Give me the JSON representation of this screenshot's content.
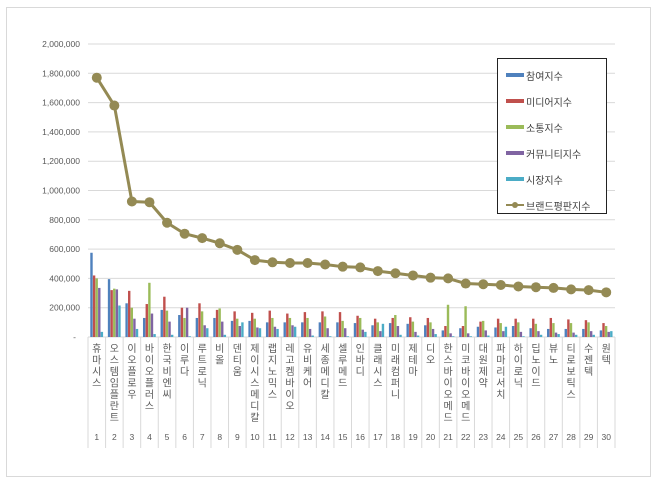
{
  "chart_data": {
    "type": "bar+line",
    "title": "",
    "xlabel": "",
    "ylabel": "",
    "ylim": [
      0,
      2000000
    ],
    "yticks": [
      0,
      200000,
      400000,
      600000,
      800000,
      1000000,
      1200000,
      1400000,
      1600000,
      1800000,
      2000000
    ],
    "ytick_labels": [
      "-",
      "200,000",
      "400,000",
      "600,000",
      "800,000",
      "1,000,000",
      "1,200,000",
      "1,400,000",
      "1,600,000",
      "1,800,000",
      "2,000,000"
    ],
    "grid": true,
    "legend_position": "upper-right-inside",
    "categories": [
      "휴마시스",
      "오스템임플란트",
      "이오플로우",
      "바이오플러스",
      "한국비엔씨",
      "이루다",
      "루트로닉",
      "비올",
      "덴티움",
      "제이시스메디칼",
      "랩지노믹스",
      "레고켐바이오",
      "유비케어",
      "세종메디칼",
      "셀루메드",
      "인바디",
      "클래시스",
      "미래컴퍼니",
      "제테마",
      "디오",
      "한스바이오메드",
      "미코바이오메드",
      "대원제약",
      "파마리서치",
      "하이로닉",
      "딥노이드",
      "뷰노",
      "티로보틱스",
      "수젠텍",
      "원텍"
    ],
    "ranks": [
      "1",
      "2",
      "3",
      "4",
      "5",
      "6",
      "7",
      "8",
      "9",
      "10",
      "11",
      "12",
      "13",
      "14",
      "15",
      "16",
      "17",
      "18",
      "19",
      "20",
      "21",
      "22",
      "23",
      "24",
      "25",
      "26",
      "27",
      "28",
      "29",
      "30"
    ],
    "series": [
      {
        "name": "참여지수",
        "type": "bar",
        "color": "#4f81bd",
        "values": [
          575000,
          395000,
          230000,
          130000,
          185000,
          150000,
          130000,
          130000,
          110000,
          110000,
          100000,
          100000,
          100000,
          100000,
          100000,
          95000,
          80000,
          95000,
          90000,
          80000,
          45000,
          60000,
          70000,
          65000,
          75000,
          60000,
          55000,
          55000,
          55000,
          45000
        ]
      },
      {
        "name": "미디어지수",
        "type": "bar",
        "color": "#c0504d",
        "values": [
          420000,
          320000,
          315000,
          225000,
          275000,
          200000,
          230000,
          185000,
          175000,
          165000,
          180000,
          160000,
          170000,
          175000,
          170000,
          145000,
          125000,
          130000,
          135000,
          130000,
          75000,
          75000,
          105000,
          125000,
          125000,
          125000,
          130000,
          120000,
          115000,
          95000
        ]
      },
      {
        "name": "소통지수",
        "type": "bar",
        "color": "#9bbb59",
        "values": [
          400000,
          330000,
          200000,
          370000,
          180000,
          130000,
          175000,
          195000,
          125000,
          125000,
          130000,
          130000,
          130000,
          140000,
          110000,
          130000,
          100000,
          150000,
          105000,
          100000,
          220000,
          210000,
          110000,
          95000,
          100000,
          90000,
          95000,
          95000,
          100000,
          75000
        ]
      },
      {
        "name": "커뮤니티지수",
        "type": "bar",
        "color": "#8064a2",
        "values": [
          335000,
          325000,
          125000,
          160000,
          105000,
          200000,
          80000,
          105000,
          75000,
          65000,
          70000,
          80000,
          55000,
          60000,
          60000,
          50000,
          40000,
          75000,
          35000,
          55000,
          25000,
          25000,
          45000,
          40000,
          35000,
          40000,
          30000,
          30000,
          40000,
          35000
        ]
      },
      {
        "name": "시장지수",
        "type": "bar",
        "color": "#4bacc6",
        "values": [
          35000,
          215000,
          55000,
          20000,
          15000,
          5000,
          60000,
          15000,
          100000,
          60000,
          55000,
          70000,
          10000,
          5000,
          5000,
          35000,
          90000,
          15000,
          10000,
          20000,
          5000,
          5000,
          10000,
          70000,
          5000,
          15000,
          20000,
          15000,
          15000,
          40000
        ]
      },
      {
        "name": "브랜드평판지수",
        "type": "line",
        "color": "#948a54",
        "values": [
          1770000,
          1580000,
          925000,
          920000,
          780000,
          705000,
          675000,
          640000,
          595000,
          525000,
          510000,
          505000,
          505000,
          495000,
          480000,
          475000,
          450000,
          435000,
          420000,
          405000,
          400000,
          365000,
          360000,
          355000,
          345000,
          340000,
          335000,
          325000,
          320000,
          305000
        ]
      }
    ]
  },
  "legend": {
    "items": [
      {
        "label": "참여지수",
        "color": "#4f81bd",
        "kind": "bar"
      },
      {
        "label": "미디어지수",
        "color": "#c0504d",
        "kind": "bar"
      },
      {
        "label": "소통지수",
        "color": "#9bbb59",
        "kind": "bar"
      },
      {
        "label": "커뮤니티지수",
        "color": "#8064a2",
        "kind": "bar"
      },
      {
        "label": "시장지수",
        "color": "#4bacc6",
        "kind": "bar"
      },
      {
        "label": "브랜드평판지수",
        "color": "#948a54",
        "kind": "line"
      }
    ]
  }
}
